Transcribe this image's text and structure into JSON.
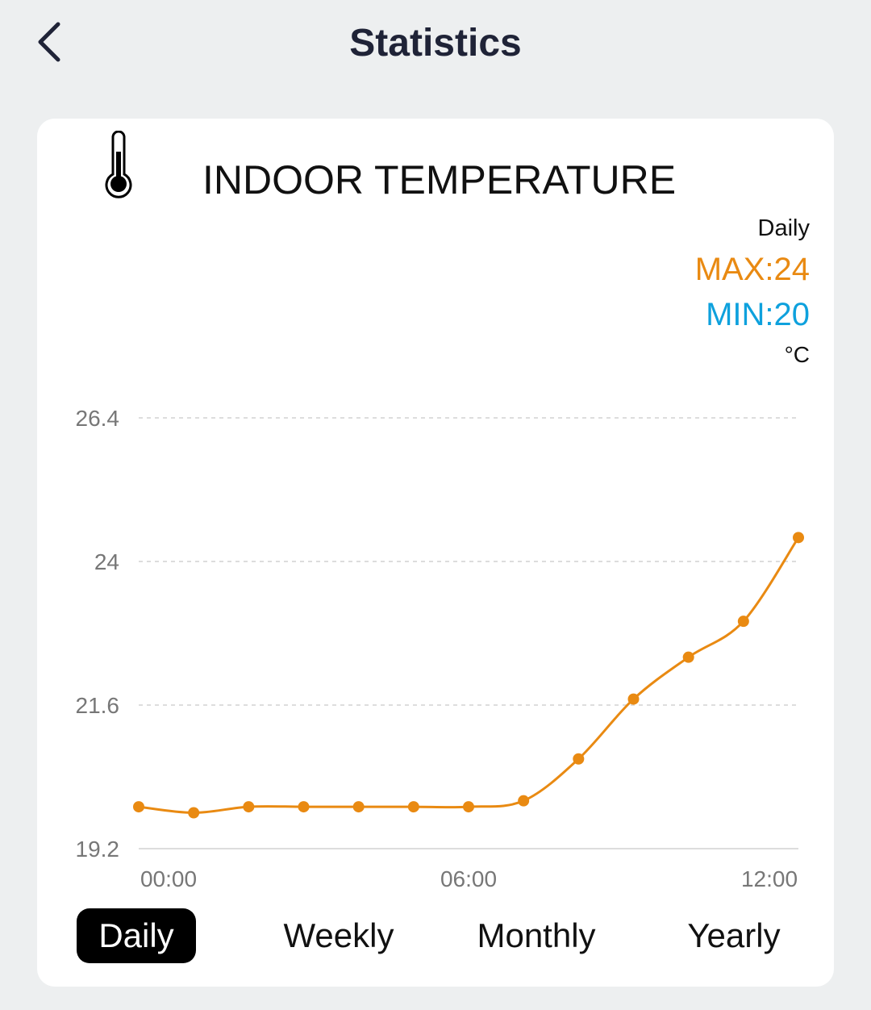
{
  "header": {
    "title": "Statistics",
    "back_icon": "chevron-left-icon"
  },
  "card": {
    "icon": "thermometer-icon",
    "title": "INDOOR TEMPERATURE",
    "period": "Daily",
    "max_label": "MAX:24",
    "min_label": "MIN:20",
    "unit": "°C",
    "colors": {
      "max": "#e98a12",
      "min": "#0ea1dd",
      "line": "#e98a12"
    }
  },
  "chart_data": {
    "type": "line",
    "x": [
      "00:00",
      "01:00",
      "02:00",
      "03:00",
      "04:00",
      "05:00",
      "06:00",
      "07:00",
      "08:00",
      "09:00",
      "10:00",
      "11:00",
      "12:00"
    ],
    "values": [
      19.9,
      19.8,
      19.9,
      19.9,
      19.9,
      19.9,
      19.9,
      20.0,
      20.7,
      21.7,
      22.4,
      23.0,
      24.4
    ],
    "y_ticks": [
      "19.2",
      "21.6",
      "24",
      "26.4"
    ],
    "x_ticks": [
      "00:00",
      "06:00",
      "12:00"
    ],
    "ylim": [
      19.2,
      26.4
    ],
    "grid": true,
    "color": "#e98a12"
  },
  "tabs": [
    {
      "label": "Daily",
      "active": true
    },
    {
      "label": "Weekly"
    },
    {
      "label": "Monthly"
    },
    {
      "label": "Yearly"
    }
  ]
}
